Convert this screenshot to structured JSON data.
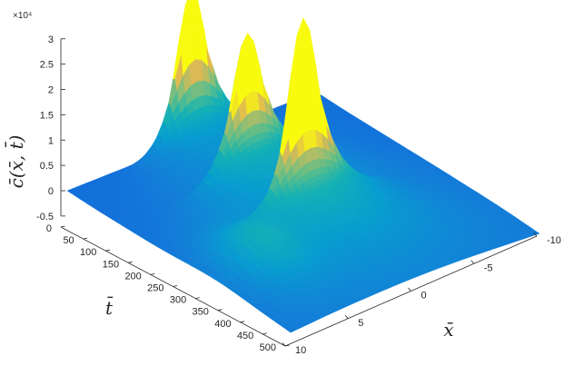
{
  "chart_data": {
    "type": "surface",
    "title": "",
    "xlabel": "x̄",
    "ylabel": "t̄",
    "zlabel": "c̄(x̄, t̄)",
    "z_exponent_label": "×10⁴",
    "z_scale": 10000,
    "xlim": [
      -10,
      10
    ],
    "ylim": [
      0,
      500
    ],
    "zlim": [
      -0.5,
      3
    ],
    "x_ticks": [
      -10,
      -5,
      0,
      5,
      10
    ],
    "x_tick_labels": [
      "-10",
      "-5",
      "0",
      "5",
      "10"
    ],
    "y_ticks": [
      0,
      50,
      100,
      150,
      200,
      250,
      300,
      350,
      400,
      450,
      500
    ],
    "y_tick_labels": [
      "0",
      "50",
      "100",
      "150",
      "200",
      "250",
      "300",
      "350",
      "400",
      "450",
      "500"
    ],
    "z_ticks": [
      -0.5,
      0,
      0.5,
      1,
      1.5,
      2,
      2.5,
      3
    ],
    "z_tick_labels": [
      "-0.5",
      "0",
      "0.5",
      "1",
      "1.5",
      "2",
      "2.5",
      "3"
    ],
    "colormap": "parula",
    "colors": {
      "low": "#352a87",
      "mid": "#0f7ed6",
      "high": "#f9fb0e"
    },
    "peaks": [
      {
        "t": 0,
        "x_center": 0,
        "z_max": 3.0
      },
      {
        "t": 125,
        "x_center": 0,
        "z_max": 2.6
      },
      {
        "t": 250,
        "x_center": 0,
        "z_max": 3.5
      }
    ],
    "grid": false
  }
}
